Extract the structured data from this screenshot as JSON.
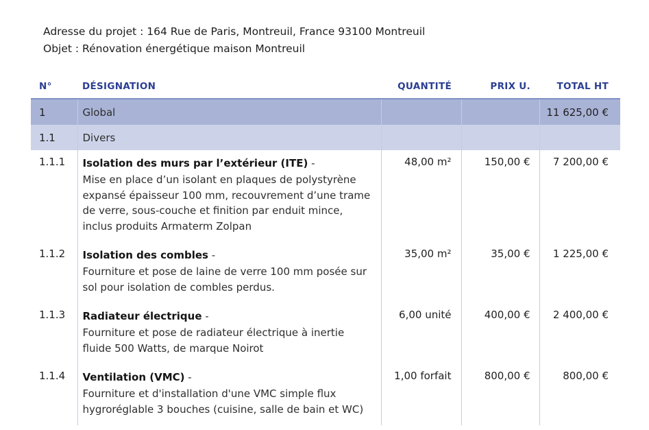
{
  "header": {
    "address_line": "Adresse du projet : 164 Rue de Paris, Montreuil, France 93100 Montreuil",
    "subject_line": "Objet : Rénovation énergétique maison Montreuil"
  },
  "table": {
    "columns": [
      "N°",
      "DÉSIGNATION",
      "QUANTITÉ",
      "PRIX U.",
      "TOTAL HT"
    ],
    "rows": [
      {
        "type": "section",
        "num": "1",
        "designation": "Global",
        "quantity": "",
        "unit_price": "",
        "total": "11 625,00 €"
      },
      {
        "type": "subsection",
        "num": "1.1",
        "designation": "Divers",
        "quantity": "",
        "unit_price": "",
        "total": ""
      },
      {
        "type": "item",
        "num": "1.1.1",
        "title": "Isolation des murs par l’extérieur (ITE)",
        "title_suffix": "-",
        "description": "Mise en place d’un isolant en plaques de polystyrène expansé épaisseur 100 mm, recouvrement d’une trame de verre, sous-couche et finition par enduit mince, inclus produits Armaterm Zolpan",
        "quantity": "48,00 m²",
        "unit_price": "150,00 €",
        "total": "7 200,00 €"
      },
      {
        "type": "item",
        "num": "1.1.2",
        "title": "Isolation des combles",
        "title_suffix": "-",
        "description": "Fourniture et pose de laine de verre 100 mm posée sur sol pour isolation de combles perdus.",
        "quantity": "35,00 m²",
        "unit_price": "35,00 €",
        "total": "1 225,00 €"
      },
      {
        "type": "item",
        "num": "1.1.3",
        "title": "Radiateur électrique",
        "title_suffix": "-",
        "description": "Fourniture et pose de radiateur électrique à inertie fluide 500 Watts, de marque Noirot",
        "quantity": "6,00 unité",
        "unit_price": "400,00 €",
        "total": "2 400,00 €"
      },
      {
        "type": "item",
        "num": "1.1.4",
        "title": "Ventilation (VMC)",
        "title_suffix": "-",
        "description": "Fourniture et d'installation d'une VMC simple flux hygroréglable 3 bouches (cuisine, salle de bain et WC)",
        "quantity": "1,00 forfait",
        "unit_price": "800,00 €",
        "total": "800,00 €"
      }
    ]
  },
  "colors": {
    "header_text": "#2b3e92",
    "header_underline": "#8191c5",
    "section_row_bg": "#a9b3d6",
    "subsection_row_bg": "#ccd3e9",
    "grid_line": "#c5cce0"
  }
}
